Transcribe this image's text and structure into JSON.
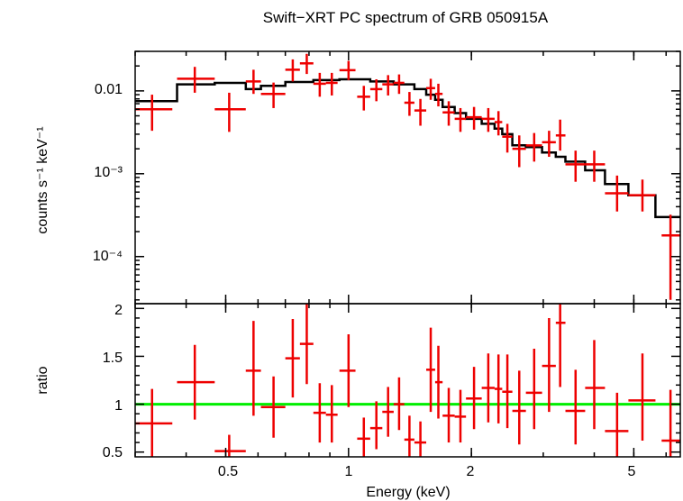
{
  "chart_data": [
    {
      "type": "scatter",
      "title": "Swift−XRT PC spectrum of GRB 050915A",
      "ylabel": "counts s⁻¹ keV⁻¹",
      "xlabel": "",
      "xscale": "log",
      "yscale": "log",
      "xlim": [
        0.3,
        6.5
      ],
      "ylim": [
        2.7e-05,
        0.03
      ],
      "y_ticklabels": [
        "0.01",
        "10⁻³",
        "10⁻⁴"
      ],
      "data_color": "#ee0000",
      "model_color": "#000000",
      "series": [
        {
          "kind": "data",
          "points": [
            {
              "x": 0.33,
              "xlo": 0.3,
              "xhi": 0.37,
              "y": 0.006,
              "ylo": 0.0033,
              "yhi": 0.009
            },
            {
              "x": 0.42,
              "xlo": 0.38,
              "xhi": 0.47,
              "y": 0.014,
              "ylo": 0.0095,
              "yhi": 0.0195
            },
            {
              "x": 0.51,
              "xlo": 0.47,
              "xhi": 0.56,
              "y": 0.006,
              "ylo": 0.0032,
              "yhi": 0.0095
            },
            {
              "x": 0.585,
              "xlo": 0.56,
              "xhi": 0.61,
              "y": 0.013,
              "ylo": 0.0092,
              "yhi": 0.018
            },
            {
              "x": 0.655,
              "xlo": 0.61,
              "xhi": 0.7,
              "y": 0.0092,
              "ylo": 0.0062,
              "yhi": 0.0126
            },
            {
              "x": 0.73,
              "xlo": 0.7,
              "xhi": 0.76,
              "y": 0.018,
              "ylo": 0.013,
              "yhi": 0.024
            },
            {
              "x": 0.79,
              "xlo": 0.76,
              "xhi": 0.82,
              "y": 0.0215,
              "ylo": 0.016,
              "yhi": 0.028
            },
            {
              "x": 0.85,
              "xlo": 0.82,
              "xhi": 0.88,
              "y": 0.0122,
              "ylo": 0.0085,
              "yhi": 0.0165
            },
            {
              "x": 0.91,
              "xlo": 0.88,
              "xhi": 0.94,
              "y": 0.0125,
              "ylo": 0.0088,
              "yhi": 0.0165
            },
            {
              "x": 1.0,
              "xlo": 0.95,
              "xhi": 1.04,
              "y": 0.0178,
              "ylo": 0.0135,
              "yhi": 0.023
            },
            {
              "x": 1.09,
              "xlo": 1.05,
              "xhi": 1.13,
              "y": 0.0085,
              "ylo": 0.0058,
              "yhi": 0.0115
            },
            {
              "x": 1.17,
              "xlo": 1.13,
              "xhi": 1.21,
              "y": 0.0105,
              "ylo": 0.0075,
              "yhi": 0.0138
            },
            {
              "x": 1.25,
              "xlo": 1.21,
              "xhi": 1.29,
              "y": 0.012,
              "ylo": 0.0088,
              "yhi": 0.0155
            },
            {
              "x": 1.33,
              "xlo": 1.29,
              "xhi": 1.37,
              "y": 0.0125,
              "ylo": 0.0092,
              "yhi": 0.0158
            },
            {
              "x": 1.41,
              "xlo": 1.37,
              "xhi": 1.45,
              "y": 0.0072,
              "ylo": 0.005,
              "yhi": 0.0097
            },
            {
              "x": 1.5,
              "xlo": 1.45,
              "xhi": 1.55,
              "y": 0.0058,
              "ylo": 0.0038,
              "yhi": 0.008
            },
            {
              "x": 1.59,
              "xlo": 1.55,
              "xhi": 1.63,
              "y": 0.0108,
              "ylo": 0.0078,
              "yhi": 0.014
            },
            {
              "x": 1.66,
              "xlo": 1.63,
              "xhi": 1.7,
              "y": 0.0092,
              "ylo": 0.0065,
              "yhi": 0.0122
            },
            {
              "x": 1.76,
              "xlo": 1.7,
              "xhi": 1.82,
              "y": 0.0055,
              "ylo": 0.0038,
              "yhi": 0.0075
            },
            {
              "x": 1.88,
              "xlo": 1.82,
              "xhi": 1.94,
              "y": 0.0046,
              "ylo": 0.0032,
              "yhi": 0.0062
            },
            {
              "x": 2.03,
              "xlo": 1.94,
              "xhi": 2.12,
              "y": 0.0048,
              "ylo": 0.0034,
              "yhi": 0.0064
            },
            {
              "x": 2.2,
              "xlo": 2.12,
              "xhi": 2.28,
              "y": 0.0046,
              "ylo": 0.0032,
              "yhi": 0.0062
            },
            {
              "x": 2.33,
              "xlo": 2.28,
              "xhi": 2.38,
              "y": 0.0042,
              "ylo": 0.0029,
              "yhi": 0.0057
            },
            {
              "x": 2.45,
              "xlo": 2.38,
              "xhi": 2.52,
              "y": 0.0028,
              "ylo": 0.0018,
              "yhi": 0.004
            },
            {
              "x": 2.62,
              "xlo": 2.52,
              "xhi": 2.72,
              "y": 0.002,
              "ylo": 0.0012,
              "yhi": 0.0029
            },
            {
              "x": 2.85,
              "xlo": 2.72,
              "xhi": 2.98,
              "y": 0.0022,
              "ylo": 0.0014,
              "yhi": 0.0031
            },
            {
              "x": 3.1,
              "xlo": 2.98,
              "xhi": 3.22,
              "y": 0.0024,
              "ylo": 0.0016,
              "yhi": 0.0033
            },
            {
              "x": 3.3,
              "xlo": 3.22,
              "xhi": 3.4,
              "y": 0.0029,
              "ylo": 0.0019,
              "yhi": 0.0045
            },
            {
              "x": 3.6,
              "xlo": 3.4,
              "xhi": 3.8,
              "y": 0.0013,
              "ylo": 0.0008,
              "yhi": 0.0019
            },
            {
              "x": 4.0,
              "xlo": 3.8,
              "xhi": 4.25,
              "y": 0.0013,
              "ylo": 0.0008,
              "yhi": 0.0019
            },
            {
              "x": 4.55,
              "xlo": 4.25,
              "xhi": 4.85,
              "y": 0.00058,
              "ylo": 0.00035,
              "yhi": 0.00095
            },
            {
              "x": 5.25,
              "xlo": 4.85,
              "xhi": 5.65,
              "y": 0.00055,
              "ylo": 0.00035,
              "yhi": 0.00085
            },
            {
              "x": 6.15,
              "xlo": 5.85,
              "xhi": 6.5,
              "y": 0.00018,
              "ylo": 3e-05,
              "yhi": 0.00032
            }
          ]
        },
        {
          "kind": "model",
          "steps": [
            {
              "x0": 0.3,
              "x1": 0.38,
              "y": 0.0075
            },
            {
              "x0": 0.38,
              "x1": 0.47,
              "y": 0.012
            },
            {
              "x0": 0.47,
              "x1": 0.56,
              "y": 0.0125
            },
            {
              "x0": 0.56,
              "x1": 0.61,
              "y": 0.0105
            },
            {
              "x0": 0.61,
              "x1": 0.7,
              "y": 0.0115
            },
            {
              "x0": 0.7,
              "x1": 0.82,
              "y": 0.0128
            },
            {
              "x0": 0.82,
              "x1": 0.95,
              "y": 0.0135
            },
            {
              "x0": 0.95,
              "x1": 1.13,
              "y": 0.0138
            },
            {
              "x0": 1.13,
              "x1": 1.29,
              "y": 0.013
            },
            {
              "x0": 1.29,
              "x1": 1.45,
              "y": 0.012
            },
            {
              "x0": 1.45,
              "x1": 1.55,
              "y": 0.0105
            },
            {
              "x0": 1.55,
              "x1": 1.63,
              "y": 0.009
            },
            {
              "x0": 1.63,
              "x1": 1.7,
              "y": 0.0078
            },
            {
              "x0": 1.7,
              "x1": 1.82,
              "y": 0.0064
            },
            {
              "x0": 1.82,
              "x1": 1.94,
              "y": 0.0054
            },
            {
              "x0": 1.94,
              "x1": 2.12,
              "y": 0.0046
            },
            {
              "x0": 2.12,
              "x1": 2.28,
              "y": 0.004
            },
            {
              "x0": 2.28,
              "x1": 2.38,
              "y": 0.0035
            },
            {
              "x0": 2.38,
              "x1": 2.52,
              "y": 0.003
            },
            {
              "x0": 2.52,
              "x1": 2.72,
              "y": 0.0022
            },
            {
              "x0": 2.72,
              "x1": 2.98,
              "y": 0.0021
            },
            {
              "x0": 2.98,
              "x1": 3.22,
              "y": 0.0018
            },
            {
              "x0": 3.22,
              "x1": 3.4,
              "y": 0.0016
            },
            {
              "x0": 3.4,
              "x1": 3.8,
              "y": 0.0014
            },
            {
              "x0": 3.8,
              "x1": 4.25,
              "y": 0.0011
            },
            {
              "x0": 4.25,
              "x1": 4.85,
              "y": 0.00075
            },
            {
              "x0": 4.85,
              "x1": 5.65,
              "y": 0.00055
            },
            {
              "x0": 5.65,
              "x1": 6.5,
              "y": 0.0003
            }
          ]
        }
      ]
    },
    {
      "type": "scatter",
      "xlabel": "Energy (keV)",
      "ylabel": "ratio",
      "xscale": "log",
      "xlim": [
        0.3,
        6.5
      ],
      "ylim": [
        0.45,
        2.05
      ],
      "y_ticklabels": [
        "0.5",
        "1",
        "1.5",
        "2"
      ],
      "x_ticklabels": [
        "0.5",
        "1",
        "2",
        "5"
      ],
      "reference_line": {
        "y": 1,
        "color": "#00ee00"
      },
      "data_color": "#ee0000",
      "points": [
        {
          "x": 0.33,
          "xlo": 0.3,
          "xhi": 0.37,
          "y": 0.8,
          "ylo": 0.45,
          "yhi": 1.16
        },
        {
          "x": 0.42,
          "xlo": 0.38,
          "xhi": 0.47,
          "y": 1.23,
          "ylo": 0.84,
          "yhi": 1.62
        },
        {
          "x": 0.51,
          "xlo": 0.47,
          "xhi": 0.56,
          "y": 0.51,
          "ylo": 0.45,
          "yhi": 0.68
        },
        {
          "x": 0.585,
          "xlo": 0.56,
          "xhi": 0.61,
          "y": 1.35,
          "ylo": 0.88,
          "yhi": 1.87
        },
        {
          "x": 0.655,
          "xlo": 0.61,
          "xhi": 0.7,
          "y": 0.97,
          "ylo": 0.65,
          "yhi": 1.29
        },
        {
          "x": 0.73,
          "xlo": 0.7,
          "xhi": 0.76,
          "y": 1.48,
          "ylo": 1.07,
          "yhi": 1.89
        },
        {
          "x": 0.79,
          "xlo": 0.76,
          "xhi": 0.82,
          "y": 1.63,
          "ylo": 1.21,
          "yhi": 2.05
        },
        {
          "x": 0.85,
          "xlo": 0.82,
          "xhi": 0.88,
          "y": 0.91,
          "ylo": 0.6,
          "yhi": 1.22
        },
        {
          "x": 0.91,
          "xlo": 0.88,
          "xhi": 0.94,
          "y": 0.89,
          "ylo": 0.6,
          "yhi": 1.2
        },
        {
          "x": 1.0,
          "xlo": 0.95,
          "xhi": 1.04,
          "y": 1.35,
          "ylo": 0.97,
          "yhi": 1.73
        },
        {
          "x": 1.09,
          "xlo": 1.05,
          "xhi": 1.13,
          "y": 0.64,
          "ylo": 0.45,
          "yhi": 0.86
        },
        {
          "x": 1.17,
          "xlo": 1.13,
          "xhi": 1.21,
          "y": 0.75,
          "ylo": 0.53,
          "yhi": 1.03
        },
        {
          "x": 1.25,
          "xlo": 1.21,
          "xhi": 1.29,
          "y": 0.92,
          "ylo": 0.66,
          "yhi": 1.18
        },
        {
          "x": 1.33,
          "xlo": 1.29,
          "xhi": 1.37,
          "y": 1.0,
          "ylo": 0.73,
          "yhi": 1.28
        },
        {
          "x": 1.41,
          "xlo": 1.37,
          "xhi": 1.45,
          "y": 0.63,
          "ylo": 0.45,
          "yhi": 0.88
        },
        {
          "x": 1.5,
          "xlo": 1.45,
          "xhi": 1.55,
          "y": 0.6,
          "ylo": 0.45,
          "yhi": 0.82
        },
        {
          "x": 1.59,
          "xlo": 1.55,
          "xhi": 1.63,
          "y": 1.36,
          "ylo": 0.92,
          "yhi": 1.8
        },
        {
          "x": 1.66,
          "xlo": 1.63,
          "xhi": 1.7,
          "y": 1.23,
          "ylo": 0.85,
          "yhi": 1.61
        },
        {
          "x": 1.76,
          "xlo": 1.7,
          "xhi": 1.82,
          "y": 0.88,
          "ylo": 0.6,
          "yhi": 1.17
        },
        {
          "x": 1.88,
          "xlo": 1.82,
          "xhi": 1.94,
          "y": 0.87,
          "ylo": 0.6,
          "yhi": 1.15
        },
        {
          "x": 2.03,
          "xlo": 1.94,
          "xhi": 2.12,
          "y": 1.06,
          "ylo": 0.74,
          "yhi": 1.39
        },
        {
          "x": 2.2,
          "xlo": 2.12,
          "xhi": 2.28,
          "y": 1.17,
          "ylo": 0.81,
          "yhi": 1.53
        },
        {
          "x": 2.33,
          "xlo": 2.28,
          "xhi": 2.38,
          "y": 1.16,
          "ylo": 0.8,
          "yhi": 1.52
        },
        {
          "x": 2.45,
          "xlo": 2.38,
          "xhi": 2.52,
          "y": 1.13,
          "ylo": 0.75,
          "yhi": 1.52
        },
        {
          "x": 2.62,
          "xlo": 2.52,
          "xhi": 2.72,
          "y": 0.93,
          "ylo": 0.58,
          "yhi": 1.35
        },
        {
          "x": 2.85,
          "xlo": 2.72,
          "xhi": 2.98,
          "y": 1.12,
          "ylo": 0.74,
          "yhi": 1.58
        },
        {
          "x": 3.1,
          "xlo": 2.98,
          "xhi": 3.22,
          "y": 1.4,
          "ylo": 0.92,
          "yhi": 1.9
        },
        {
          "x": 3.3,
          "xlo": 3.22,
          "xhi": 3.4,
          "y": 1.85,
          "ylo": 1.18,
          "yhi": 2.05
        },
        {
          "x": 3.6,
          "xlo": 3.4,
          "xhi": 3.8,
          "y": 0.93,
          "ylo": 0.58,
          "yhi": 1.36
        },
        {
          "x": 4.0,
          "xlo": 3.8,
          "xhi": 4.25,
          "y": 1.17,
          "ylo": 0.74,
          "yhi": 1.67
        },
        {
          "x": 4.55,
          "xlo": 4.25,
          "xhi": 4.85,
          "y": 0.72,
          "ylo": 0.45,
          "yhi": 1.12
        },
        {
          "x": 5.25,
          "xlo": 4.85,
          "xhi": 5.65,
          "y": 1.04,
          "ylo": 0.62,
          "yhi": 1.53
        },
        {
          "x": 6.15,
          "xlo": 5.85,
          "xhi": 6.5,
          "y": 0.62,
          "ylo": 0.45,
          "yhi": 1.15
        }
      ]
    }
  ]
}
